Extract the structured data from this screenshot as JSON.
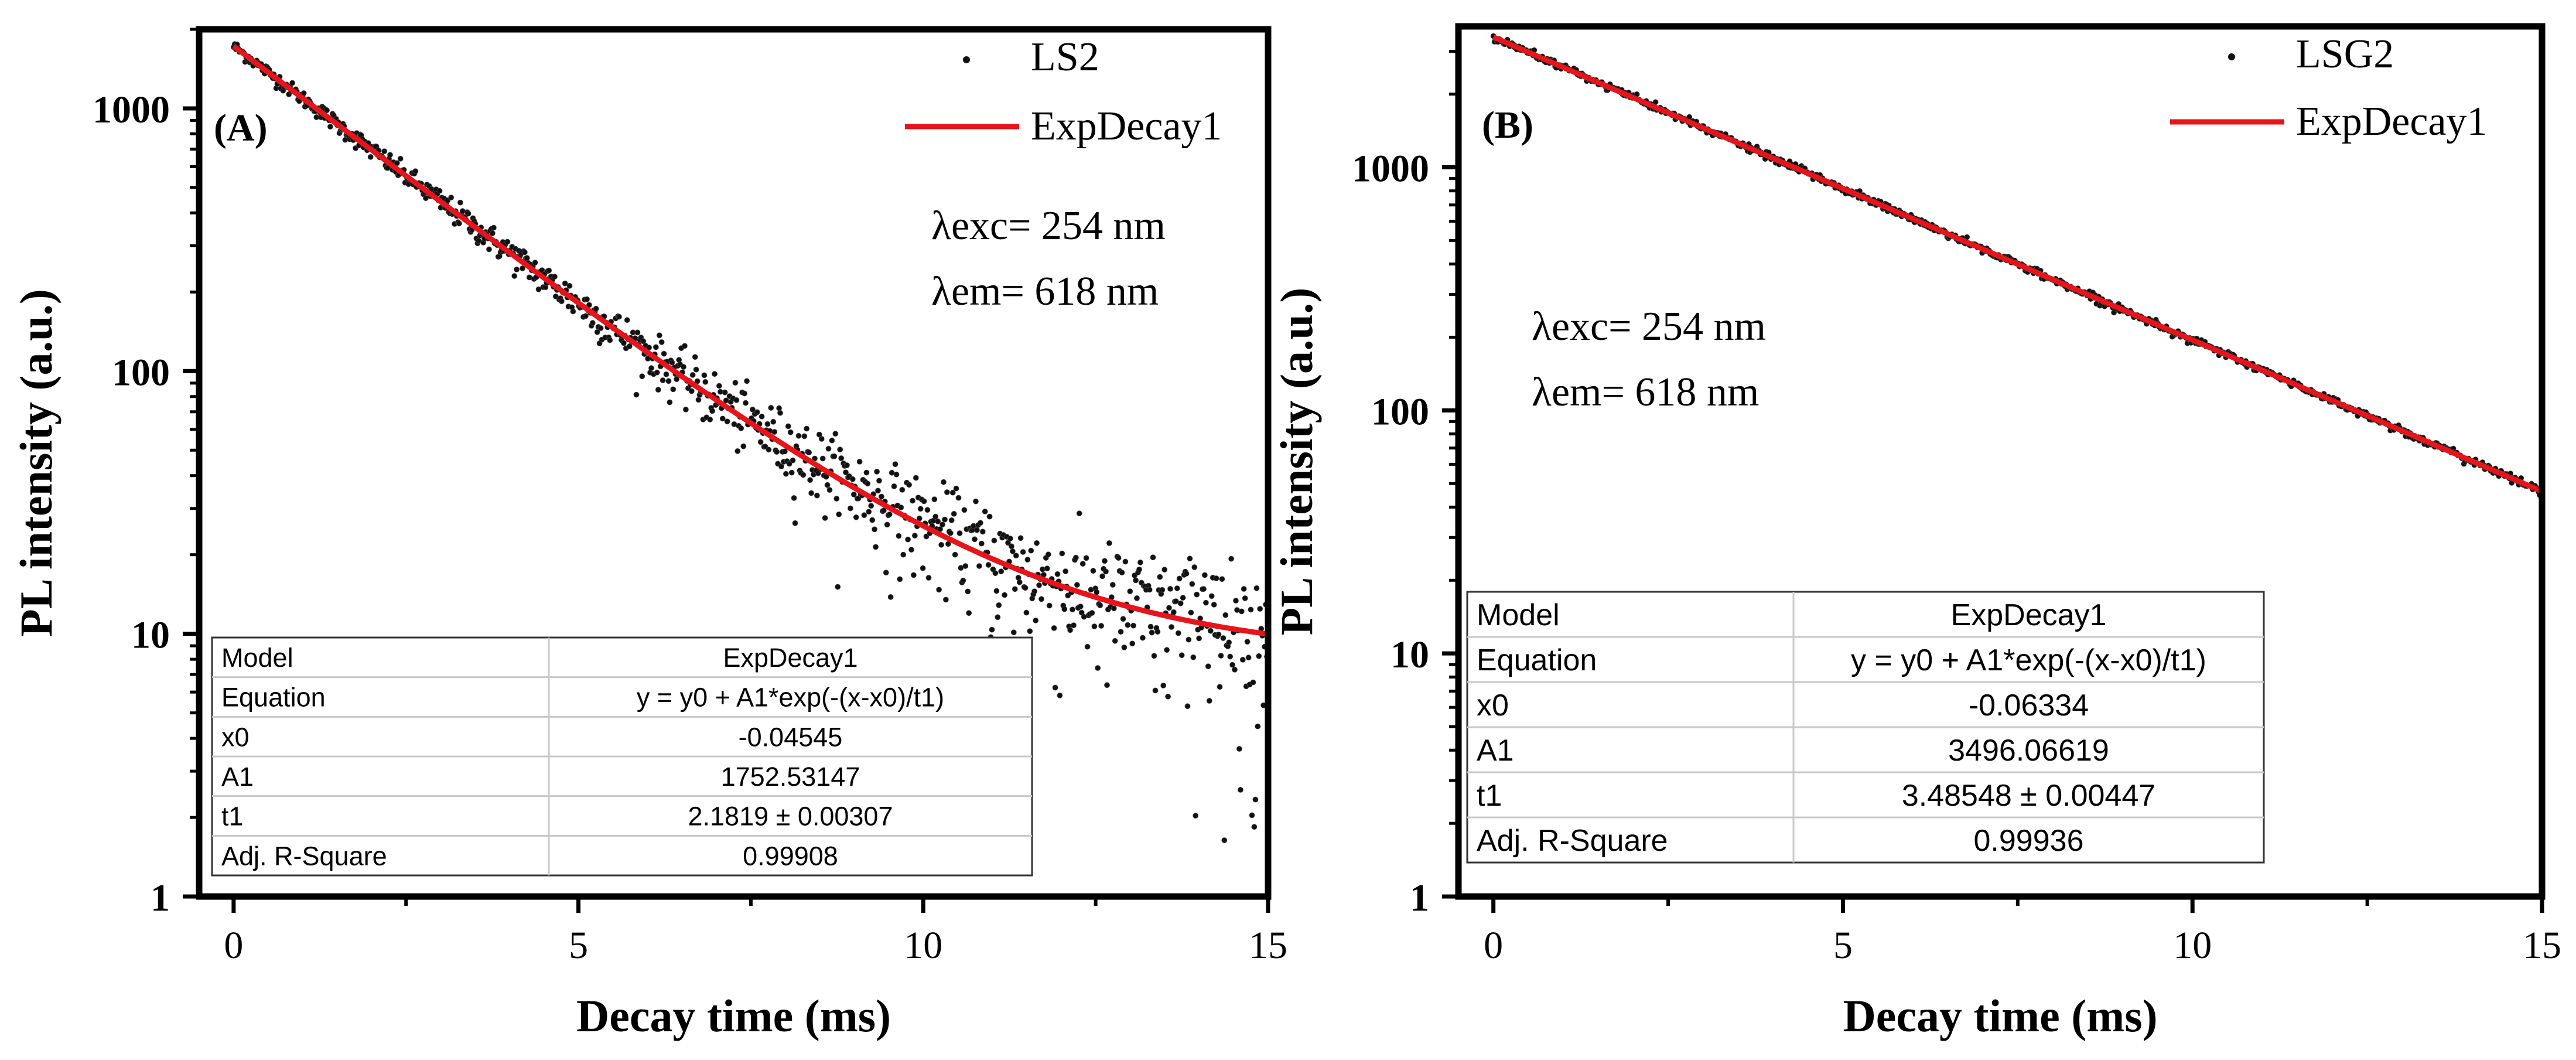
{
  "colors": {
    "data": "#111111",
    "fit": "#e8141b",
    "axis": "#000000",
    "tablegrid": "#c8c8c8"
  },
  "chart_data": [
    {
      "type": "scatter",
      "panel_label": "(A)",
      "xlabel": "Decay time (ms)",
      "ylabel": "PL intensity (a.u.)",
      "xlim": [
        -0.5,
        15
      ],
      "ylim": [
        1,
        2000
      ],
      "yscale": "log",
      "xticks": [
        0,
        5,
        10,
        15
      ],
      "xtick_labels": [
        "0",
        "5",
        "10",
        "15"
      ],
      "yticks": [
        1,
        10,
        100,
        1000
      ],
      "ytick_labels": [
        "1",
        "10",
        "100",
        "1000"
      ],
      "legend_position": "top-right",
      "legend": [
        {
          "label": "LS2",
          "marker": "dot"
        },
        {
          "label": "ExpDecay1",
          "marker": "line"
        }
      ],
      "annotations": [
        "λexc= 254 nm",
        "λem= 618 nm"
      ],
      "series": [
        {
          "name": "LS2",
          "kind": "points",
          "model": {
            "y0": 8.2,
            "A1": 1752.53147,
            "x0": -0.04545,
            "t1": 2.1819
          },
          "x_range": [
            0,
            15
          ],
          "n_points": 900
        },
        {
          "name": "ExpDecay1",
          "kind": "line",
          "model": {
            "y0": 8.2,
            "A1": 1752.53147,
            "x0": -0.04545,
            "t1": 2.1819
          },
          "x_range": [
            0,
            15
          ]
        }
      ],
      "fit_table": {
        "rows": [
          [
            "Model",
            "ExpDecay1"
          ],
          [
            "Equation",
            "y = y0 + A1*exp(-(x-x0)/t1)"
          ],
          [
            "x0",
            "-0.04545"
          ],
          [
            "A1",
            "1752.53147"
          ],
          [
            "t1",
            "2.1819 ± 0.00307"
          ],
          [
            "Adj. R-Square",
            "0.99908"
          ]
        ]
      }
    },
    {
      "type": "scatter",
      "panel_label": "(B)",
      "xlabel": "Decay time (ms)",
      "ylabel": "PL intensity (a.u.)",
      "xlim": [
        -0.5,
        15
      ],
      "ylim": [
        1,
        3800
      ],
      "yscale": "log",
      "xticks": [
        0,
        5,
        10,
        15
      ],
      "xtick_labels": [
        "0",
        "5",
        "10",
        "15"
      ],
      "yticks": [
        1,
        10,
        100,
        1000
      ],
      "ytick_labels": [
        "1",
        "10",
        "100",
        "1000"
      ],
      "legend_position": "top-right",
      "legend": [
        {
          "label": "LSG2",
          "marker": "dot"
        },
        {
          "label": "ExpDecay1",
          "marker": "line"
        }
      ],
      "annotations": [
        "λexc= 254 nm",
        "λem= 618 nm"
      ],
      "series": [
        {
          "name": "LSG2",
          "kind": "points",
          "model": {
            "y0": 0,
            "A1": 3496.06619,
            "x0": -0.06334,
            "t1": 3.48548
          },
          "x_range": [
            0,
            15
          ],
          "n_points": 900
        },
        {
          "name": "ExpDecay1",
          "kind": "line",
          "model": {
            "y0": 0,
            "A1": 3496.06619,
            "x0": -0.06334,
            "t1": 3.48548
          },
          "x_range": [
            0,
            15
          ]
        }
      ],
      "fit_table": {
        "rows": [
          [
            "Model",
            "ExpDecay1"
          ],
          [
            "Equation",
            "y = y0 + A1*exp(-(x-x0)/t1)"
          ],
          [
            "x0",
            "-0.06334"
          ],
          [
            "A1",
            "3496.06619"
          ],
          [
            "t1",
            "3.48548 ± 0.00447"
          ],
          [
            "Adj. R-Square",
            "0.99936"
          ]
        ]
      }
    }
  ]
}
